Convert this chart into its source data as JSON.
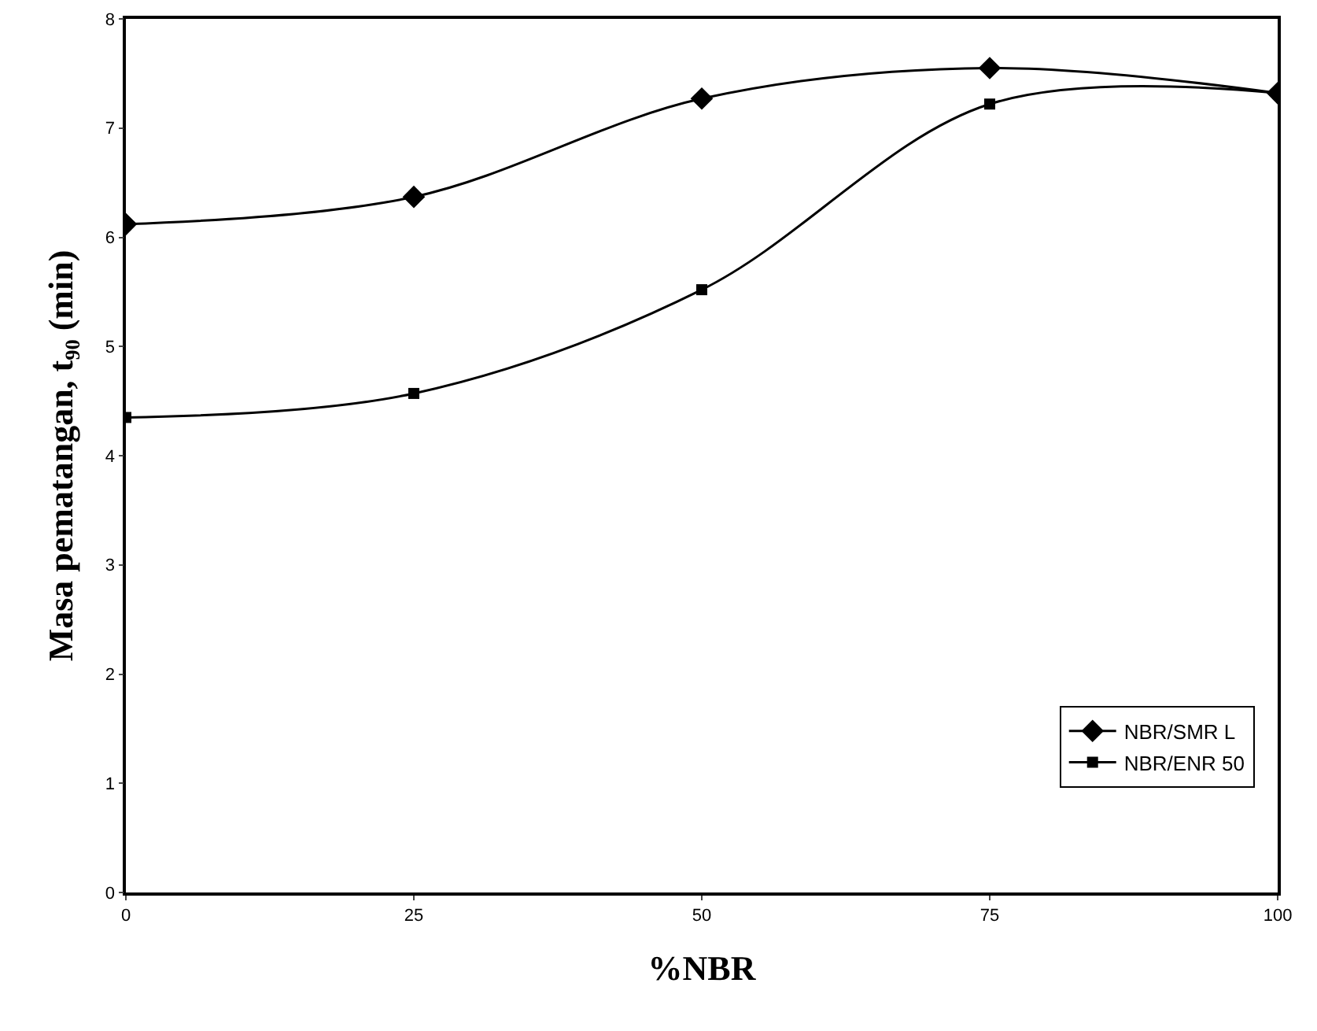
{
  "chart_data": {
    "type": "line",
    "xlabel": "%NBR",
    "ylabel": "Masa pematangan, t₉₀ (min)",
    "x": [
      0,
      25,
      50,
      75,
      100
    ],
    "series": [
      {
        "name": "NBR/SMR L",
        "color": "#000000",
        "marker": "diamond",
        "values": [
          6.12,
          6.37,
          7.27,
          7.55,
          7.32
        ]
      },
      {
        "name": "NBR/ENR 50",
        "color": "#000000",
        "marker": "square",
        "values": [
          4.35,
          4.57,
          5.52,
          7.22,
          7.32
        ]
      }
    ],
    "xlim": [
      0,
      100
    ],
    "xticks": [
      0,
      25,
      50,
      75,
      100
    ],
    "ylim": [
      0,
      8
    ],
    "yticks": [
      0,
      1,
      2,
      3,
      4,
      5,
      6,
      7,
      8
    ],
    "grid": false,
    "legend": "bottom right",
    "line_style": "solid"
  }
}
